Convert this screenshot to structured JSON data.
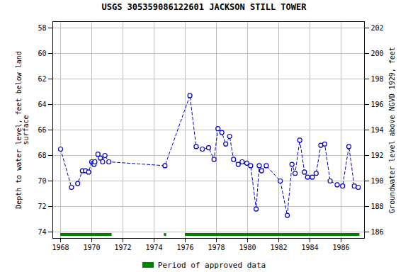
{
  "chart_data": {
    "type": "line",
    "title": "USGS 305359086122601 JACKSON STILL TOWER",
    "ylabel": "Depth to water level, feet below land\nsurface",
    "y2label": "Groundwater level above NGVD 1929, feet",
    "x": [
      1968.0,
      1968.7,
      1969.1,
      1969.4,
      1969.6,
      1969.8,
      1970.0,
      1970.1,
      1970.15,
      1970.2,
      1970.4,
      1970.55,
      1970.7,
      1970.85,
      1971.1,
      1974.7,
      1976.3,
      1976.7,
      1977.1,
      1977.5,
      1977.85,
      1978.1,
      1978.35,
      1978.6,
      1978.85,
      1979.1,
      1979.4,
      1979.65,
      1979.95,
      1980.2,
      1980.55,
      1980.75,
      1980.9,
      1981.2,
      1982.1,
      1982.55,
      1982.85,
      1983.05,
      1983.35,
      1983.65,
      1983.85,
      1984.15,
      1984.4,
      1984.7,
      1984.95,
      1985.3,
      1985.75,
      1986.1,
      1986.5,
      1986.85,
      1987.1
    ],
    "values": [
      67.5,
      70.5,
      70.2,
      69.2,
      69.2,
      69.3,
      68.5,
      68.6,
      68.7,
      68.5,
      67.9,
      68.2,
      68.5,
      68.0,
      68.5,
      68.8,
      63.3,
      67.3,
      67.5,
      67.4,
      68.3,
      65.9,
      66.2,
      67.1,
      66.5,
      68.3,
      68.7,
      68.5,
      68.6,
      68.8,
      72.2,
      68.8,
      69.2,
      68.8,
      70.0,
      72.7,
      68.7,
      69.4,
      66.8,
      69.3,
      69.7,
      69.7,
      69.4,
      67.2,
      67.1,
      70.0,
      70.3,
      70.4,
      67.3,
      70.4,
      70.5
    ],
    "color": "#0000cc",
    "line_style": "dashed",
    "marker": "circle",
    "xlim": [
      1967.5,
      1987.5
    ],
    "xticks": [
      1968,
      1970,
      1972,
      1974,
      1976,
      1978,
      1980,
      1982,
      1984,
      1986
    ],
    "ylim": [
      74.5,
      57.5
    ],
    "yticks": [
      58,
      60,
      62,
      64,
      66,
      68,
      70,
      72,
      74
    ],
    "y2lim": [
      185.5,
      202.5
    ],
    "y2ticks": [
      186,
      188,
      190,
      192,
      194,
      196,
      198,
      200,
      202
    ],
    "grid": true,
    "legend": "bottom",
    "approved_periods": {
      "name": "Period of approved data",
      "color": "#008000",
      "y": 74.2,
      "ranges": [
        [
          1968.0,
          1971.3
        ],
        [
          1974.65,
          1974.8
        ],
        [
          1976.0,
          1987.2
        ]
      ]
    }
  }
}
